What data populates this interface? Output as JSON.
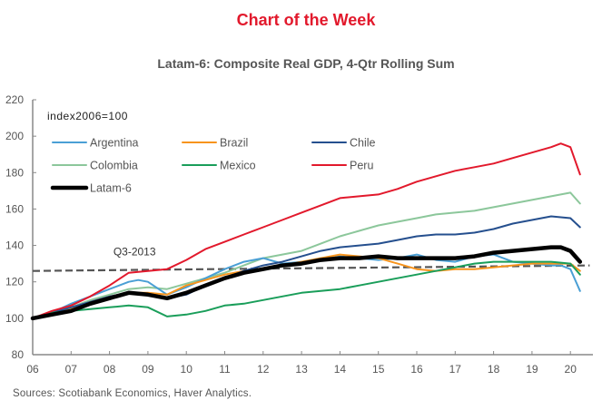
{
  "header": {
    "title": "Chart of the Week",
    "subtitle": "Latam-6:  Composite Real GDP, 4-Qtr Rolling Sum"
  },
  "footer": {
    "source": "Sources: Scotiabank Economics, Haver Analytics."
  },
  "chart_data": {
    "type": "line",
    "title": "Latam-6:  Composite Real GDP, 4-Qtr Rolling Sum",
    "unit_label": "index2006=100",
    "xlabel": "",
    "ylabel": "",
    "x_ticks": [
      "06",
      "07",
      "08",
      "09",
      "10",
      "11",
      "12",
      "13",
      "14",
      "15",
      "16",
      "17",
      "18",
      "19",
      "20"
    ],
    "y_ticks": [
      80,
      100,
      120,
      140,
      160,
      180,
      200,
      220
    ],
    "xlim": [
      2006,
      2020.6
    ],
    "ylim": [
      80,
      220
    ],
    "grid": false,
    "legend_position": "top-left",
    "annotation": {
      "text": "Q3-2013",
      "line_style": "dashed",
      "color": "#555555",
      "y_start": 126,
      "y_end": 129,
      "x_start": 2006,
      "x_end": 2020.5
    },
    "series": [
      {
        "name": "Argentina",
        "color": "#4a9fd5",
        "width": 2,
        "x": [
          2006,
          2006.5,
          2007,
          2007.5,
          2008,
          2008.5,
          2008.75,
          2009,
          2009.5,
          2010,
          2010.5,
          2011,
          2011.5,
          2012,
          2012.5,
          2013,
          2013.5,
          2014,
          2014.5,
          2015,
          2015.5,
          2016,
          2016.5,
          2017,
          2017.5,
          2018,
          2018.5,
          2019,
          2019.5,
          2019.75,
          2020,
          2020.25
        ],
        "y": [
          100,
          103,
          108,
          112,
          116,
          120,
          121,
          120,
          113,
          117,
          122,
          127,
          131,
          133,
          130,
          131,
          132,
          134,
          133,
          132,
          133,
          135,
          132,
          131,
          134,
          135,
          131,
          130,
          129,
          129,
          127,
          115
        ]
      },
      {
        "name": "Brazil",
        "color": "#f7941d",
        "width": 2,
        "x": [
          2006,
          2006.5,
          2007,
          2007.5,
          2008,
          2008.5,
          2009,
          2009.5,
          2010,
          2010.5,
          2011,
          2011.5,
          2012,
          2012.5,
          2013,
          2013.5,
          2014,
          2014.5,
          2015,
          2015.5,
          2016,
          2016.5,
          2017,
          2017.5,
          2018,
          2018.5,
          2019,
          2019.5,
          2020,
          2020.25
        ],
        "y": [
          100,
          102,
          105,
          109,
          112,
          114,
          114,
          113,
          118,
          121,
          124,
          126,
          127,
          129,
          131,
          133,
          135,
          134,
          133,
          130,
          127,
          126,
          127,
          127,
          128,
          129,
          130,
          130,
          130,
          126
        ]
      },
      {
        "name": "Chile",
        "color": "#254f8e",
        "width": 2,
        "x": [
          2006,
          2006.5,
          2007,
          2007.5,
          2008,
          2008.5,
          2009,
          2009.5,
          2010,
          2010.5,
          2011,
          2011.5,
          2012,
          2012.5,
          2013,
          2013.5,
          2014,
          2014.5,
          2015,
          2015.5,
          2016,
          2016.5,
          2017,
          2017.5,
          2018,
          2018.5,
          2019,
          2019.5,
          2020,
          2020.25
        ],
        "y": [
          100,
          103,
          106,
          109,
          112,
          114,
          113,
          111,
          113,
          118,
          122,
          126,
          129,
          131,
          134,
          137,
          139,
          140,
          141,
          143,
          145,
          146,
          146,
          147,
          149,
          152,
          154,
          156,
          155,
          150
        ]
      },
      {
        "name": "Colombia",
        "color": "#8cc79b",
        "width": 2,
        "x": [
          2006,
          2006.5,
          2007,
          2007.5,
          2008,
          2008.5,
          2009,
          2009.5,
          2010,
          2010.5,
          2011,
          2011.5,
          2012,
          2012.5,
          2013,
          2013.5,
          2014,
          2014.5,
          2015,
          2015.5,
          2016,
          2016.5,
          2017,
          2017.5,
          2018,
          2018.5,
          2019,
          2019.5,
          2020,
          2020.25
        ],
        "y": [
          100,
          103,
          106,
          110,
          113,
          116,
          117,
          116,
          119,
          122,
          125,
          129,
          133,
          135,
          137,
          141,
          145,
          148,
          151,
          153,
          155,
          157,
          158,
          159,
          161,
          163,
          165,
          167,
          169,
          163
        ]
      },
      {
        "name": "Mexico",
        "color": "#1a9e5a",
        "width": 2,
        "x": [
          2006,
          2006.5,
          2007,
          2007.5,
          2008,
          2008.5,
          2009,
          2009.5,
          2010,
          2010.5,
          2011,
          2011.5,
          2012,
          2012.5,
          2013,
          2013.5,
          2014,
          2014.5,
          2015,
          2015.5,
          2016,
          2016.5,
          2017,
          2017.5,
          2018,
          2018.5,
          2019,
          2019.5,
          2020,
          2020.25
        ],
        "y": [
          100,
          103,
          104,
          105,
          106,
          107,
          106,
          101,
          102,
          104,
          107,
          108,
          110,
          112,
          114,
          115,
          116,
          118,
          120,
          122,
          124,
          126,
          128,
          130,
          131,
          131,
          131,
          131,
          130,
          124
        ]
      },
      {
        "name": "Peru",
        "color": "#e2192c",
        "width": 2,
        "x": [
          2006,
          2006.5,
          2007,
          2007.5,
          2008,
          2008.5,
          2009,
          2009.5,
          2010,
          2010.5,
          2011,
          2011.5,
          2012,
          2012.5,
          2013,
          2013.5,
          2014,
          2014.5,
          2015,
          2015.5,
          2016,
          2016.5,
          2017,
          2017.5,
          2018,
          2018.5,
          2019,
          2019.5,
          2019.75,
          2020,
          2020.25
        ],
        "y": [
          100,
          104,
          107,
          112,
          118,
          125,
          126,
          127,
          132,
          138,
          142,
          146,
          150,
          154,
          158,
          162,
          166,
          167,
          168,
          171,
          175,
          178,
          181,
          183,
          185,
          188,
          191,
          194,
          196,
          194,
          179
        ]
      },
      {
        "name": "Latam-6",
        "color": "#000000",
        "width": 4.5,
        "x": [
          2006,
          2006.5,
          2007,
          2007.5,
          2008,
          2008.5,
          2009,
          2009.5,
          2010,
          2010.5,
          2011,
          2011.5,
          2012,
          2012.5,
          2013,
          2013.5,
          2014,
          2014.5,
          2015,
          2015.5,
          2016,
          2016.5,
          2017,
          2017.5,
          2018,
          2018.5,
          2019,
          2019.5,
          2019.75,
          2020,
          2020.25
        ],
        "y": [
          100,
          102,
          104,
          108,
          111,
          114,
          113,
          111,
          114,
          118,
          122,
          125,
          127,
          129,
          130,
          132,
          133,
          133,
          134,
          133,
          133,
          133,
          133,
          134,
          136,
          137,
          138,
          139,
          139,
          137,
          131
        ]
      }
    ]
  }
}
